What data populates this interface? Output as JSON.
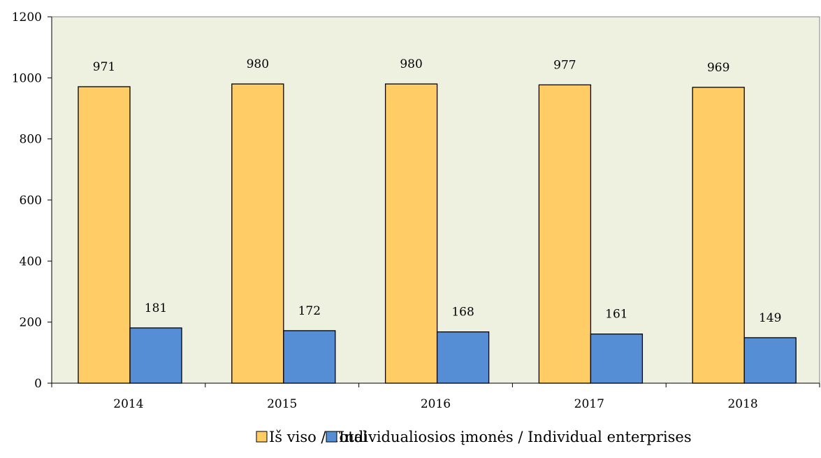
{
  "chart_data": {
    "type": "bar",
    "categories": [
      "2014",
      "2015",
      "2016",
      "2017",
      "2018"
    ],
    "series": [
      {
        "name": "Iš viso / Total",
        "values": [
          971,
          980,
          980,
          977,
          969
        ],
        "color": "#FFCC66"
      },
      {
        "name": "Individualiosios įmonės / Individual enterprises",
        "values": [
          181,
          172,
          168,
          161,
          149
        ],
        "color": "#558ED5"
      }
    ],
    "ylim": [
      0,
      1200
    ],
    "yticks": [
      0,
      200,
      400,
      600,
      800,
      1000,
      1200
    ],
    "grid": false,
    "legend_position": "bottom",
    "plot_background": "#EEF0E0",
    "title": "",
    "xlabel": "",
    "ylabel": ""
  }
}
